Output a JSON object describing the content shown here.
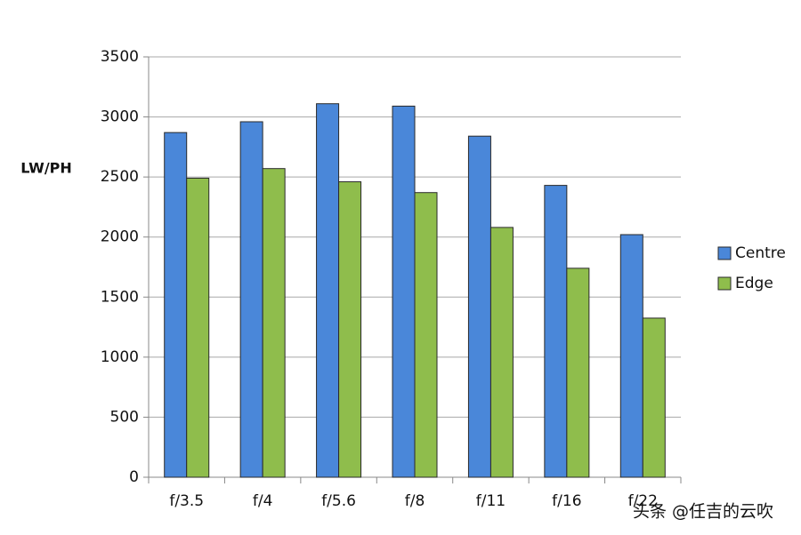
{
  "chart_data": {
    "type": "bar",
    "y_label": "LW/PH",
    "categories": [
      "f/3.5",
      "f/4",
      "f/5.6",
      "f/8",
      "f/11",
      "f/16",
      "f/22"
    ],
    "series": [
      {
        "name": "Centre",
        "color": "#4a87d9",
        "values": [
          2870,
          2960,
          3110,
          3090,
          2840,
          2430,
          2020
        ]
      },
      {
        "name": "Edge",
        "color": "#8fbd4c",
        "values": [
          2490,
          2570,
          2460,
          2370,
          2080,
          1740,
          1325
        ]
      }
    ],
    "ylim": [
      0,
      3500
    ],
    "yticks": [
      0,
      500,
      1000,
      1500,
      2000,
      2500,
      3000,
      3500
    ],
    "grid": true,
    "legend": "right"
  },
  "watermark": "头条 @任吉的云吹"
}
